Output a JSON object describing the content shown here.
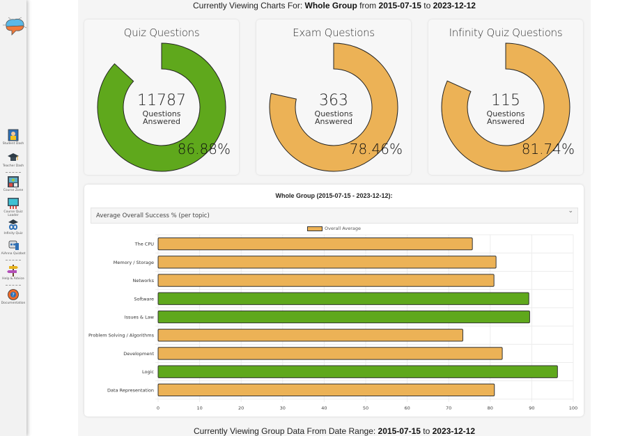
{
  "sidebar": {
    "logo": "brain-logo-icon",
    "items": [
      {
        "label": "Student Dash",
        "icon": "student-dash-icon"
      },
      {
        "label": "Teacher Dash",
        "icon": "graduation-cap-icon"
      },
      {
        "label": "Course Zone",
        "icon": "course-zone-icon"
      },
      {
        "label": "Course Quiz Loader",
        "icon": "quiz-loader-icon"
      },
      {
        "label": "Infinity Quiz",
        "icon": "infinity-icon"
      },
      {
        "label": "AiAnna Quizbot",
        "icon": "robot-icon"
      },
      {
        "label": "Help & Advice",
        "icon": "signpost-icon"
      },
      {
        "label": "Documentation",
        "icon": "lifebuoy-icon"
      }
    ]
  },
  "header": {
    "prefix": "Currently Viewing Charts For: ",
    "group": "Whole Group",
    "from_word": " from ",
    "start": "2015-07-15",
    "to_word": " to ",
    "end": "2023-12-12"
  },
  "cards": [
    {
      "title": "Quiz Questions",
      "count": "11787",
      "line1": "Questions",
      "line2": "Answered",
      "percent_label": "86.88%",
      "percent": 86.88,
      "color": "#5fa81c"
    },
    {
      "title": "Exam Questions",
      "count": "363",
      "line1": "Questions",
      "line2": "Answered",
      "percent_label": "78.46%",
      "percent": 78.46,
      "color": "#ecb256"
    },
    {
      "title": "Infinity Quiz Questions",
      "count": "115",
      "line1": "Questions",
      "line2": "Answered",
      "percent_label": "81.74%",
      "percent": 81.74,
      "color": "#ecb256"
    }
  ],
  "chart_section": {
    "title": "Whole Group (2015-07-15 - 2023-12-12):",
    "select_value": "Average Overall Success % (per topic)",
    "chevron": "chevron-down-icon"
  },
  "chart_data": {
    "type": "bar",
    "orientation": "horizontal",
    "title": "Whole Group (2015-07-15 - 2023-12-12):",
    "legend": [
      "Overall Average"
    ],
    "legend_position": "top-center",
    "categories": [
      "The CPU",
      "Memory / Storage",
      "Networks",
      "Software",
      "Issues & Law",
      "Problem Solving / Algorithms",
      "Development",
      "Logic",
      "Data Representation"
    ],
    "series": [
      {
        "name": "Overall Average",
        "values": [
          75.7,
          81.4,
          80.9,
          89.3,
          89.5,
          73.4,
          82.9,
          96.2,
          81.0
        ]
      }
    ],
    "bar_colors": [
      "#ecb256",
      "#ecb256",
      "#ecb256",
      "#5fa81c",
      "#5fa81c",
      "#ecb256",
      "#ecb256",
      "#5fa81c",
      "#ecb256"
    ],
    "xlim": [
      0,
      100
    ],
    "xticks": [
      "0",
      "10",
      "20",
      "30",
      "40",
      "50",
      "60",
      "70",
      "80",
      "90",
      "100"
    ],
    "grid": true,
    "xlabel": "",
    "ylabel": ""
  },
  "footer": {
    "prefix": "Currently Viewing Group Data From Date Range: ",
    "start": "2015-07-15",
    "to_word": " to ",
    "end": "2023-12-12"
  }
}
